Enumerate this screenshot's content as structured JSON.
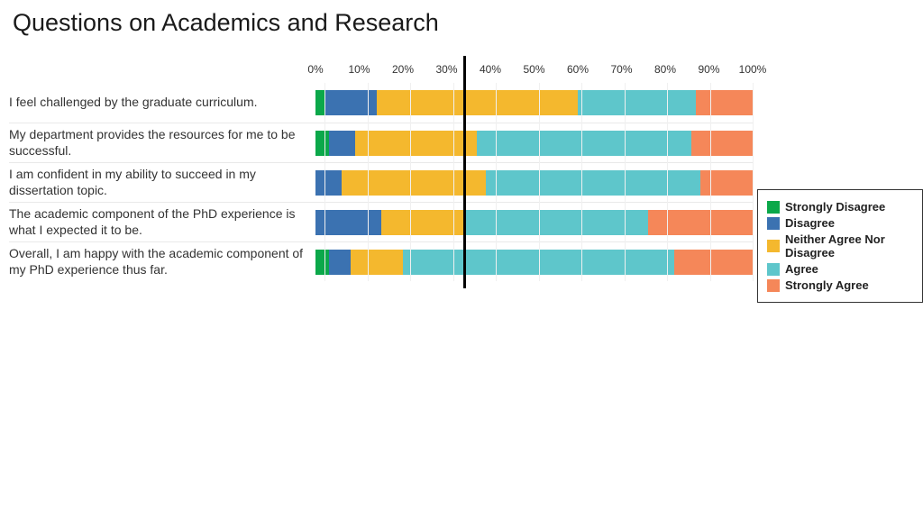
{
  "title": "Questions on Academics and Research",
  "chart": {
    "type": "stacked-bar-horizontal",
    "categories": [
      "Strongly Disagree",
      "Disagree",
      "Neither Agree Nor Disagree",
      "Agree",
      "Strongly Agree"
    ],
    "colors": {
      "strongly_disagree": "#0ba84a",
      "disagree": "#3b72b1",
      "neither": "#f4b82e",
      "agree": "#5ec6cb",
      "strongly_agree": "#f58759"
    },
    "axis_ticks": [
      "0%",
      "10%",
      "20%",
      "30%",
      "40%",
      "50%",
      "60%",
      "70%",
      "80%",
      "90%",
      "100%"
    ],
    "axis_label_fontsize": 12,
    "question_fontsize": 14,
    "title_fontsize": 27,
    "divider_at_percent": 34,
    "background_color": "#ffffff",
    "row_border_color": "#e9e9e9",
    "grid_color": "#f0f0f0",
    "questions": [
      {
        "label": "I feel challenged by the graduate curriculum.",
        "values": [
          2,
          12,
          46,
          27,
          13
        ]
      },
      {
        "label": "My department provides the resources for me to be successful.",
        "values": [
          3,
          6,
          28,
          49,
          14
        ]
      },
      {
        "label": "I am confident in my ability to succeed in my dissertation topic.",
        "values": [
          0,
          6,
          33,
          49,
          12
        ]
      },
      {
        "label": "The academic component of the PhD experience is what I expected it to be.",
        "values": [
          0,
          15,
          19,
          42,
          24
        ]
      },
      {
        "label": "Overall, I am happy with the academic component of my PhD experience thus far.",
        "values": [
          3,
          5,
          12,
          6,
          56,
          18
        ]
      }
    ],
    "last_row_colors_override": [
      "#0ba84a",
      "#3b72b1",
      "#f4b82e",
      "#5ec6cb",
      "#5ec6cb",
      "#f58759"
    ]
  },
  "legend": {
    "border_color": "#333333",
    "items": [
      {
        "label": "Strongly Disagree",
        "color": "#0ba84a"
      },
      {
        "label": "Disagree",
        "color": "#3b72b1"
      },
      {
        "label": "Neither Agree Nor Disagree",
        "color": "#f4b82e"
      },
      {
        "label": "Agree",
        "color": "#5ec6cb"
      },
      {
        "label": "Strongly Agree",
        "color": "#f58759"
      }
    ]
  }
}
